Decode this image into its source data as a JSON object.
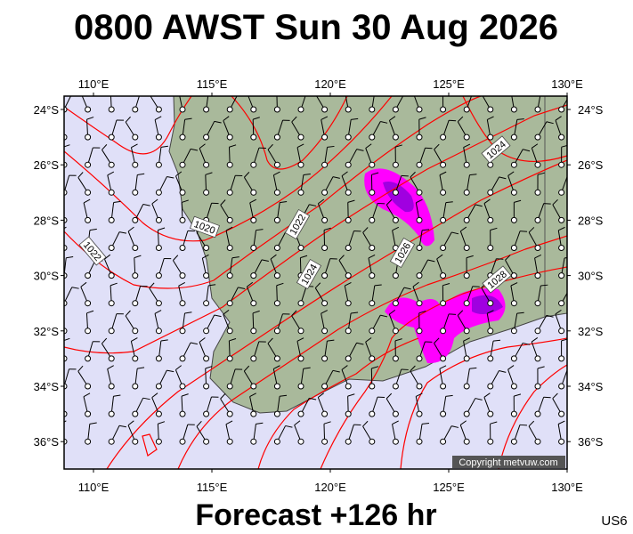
{
  "header": {
    "title": "0800 AWST Sun 30 Aug 2026"
  },
  "map": {
    "lon_labels": [
      "110°E",
      "115°E",
      "120°E",
      "125°E",
      "130°E"
    ],
    "lat_labels": [
      "24°S",
      "26°S",
      "28°S",
      "30°S",
      "32°S",
      "34°S",
      "36°S"
    ],
    "isobar_labels": [
      "1020",
      "1022",
      "1022",
      "1024",
      "1024",
      "1026",
      "1028"
    ],
    "copyright": "Copyright metvuw.com"
  },
  "footer": {
    "caption": "Forecast +126 hr",
    "code": "US6"
  }
}
